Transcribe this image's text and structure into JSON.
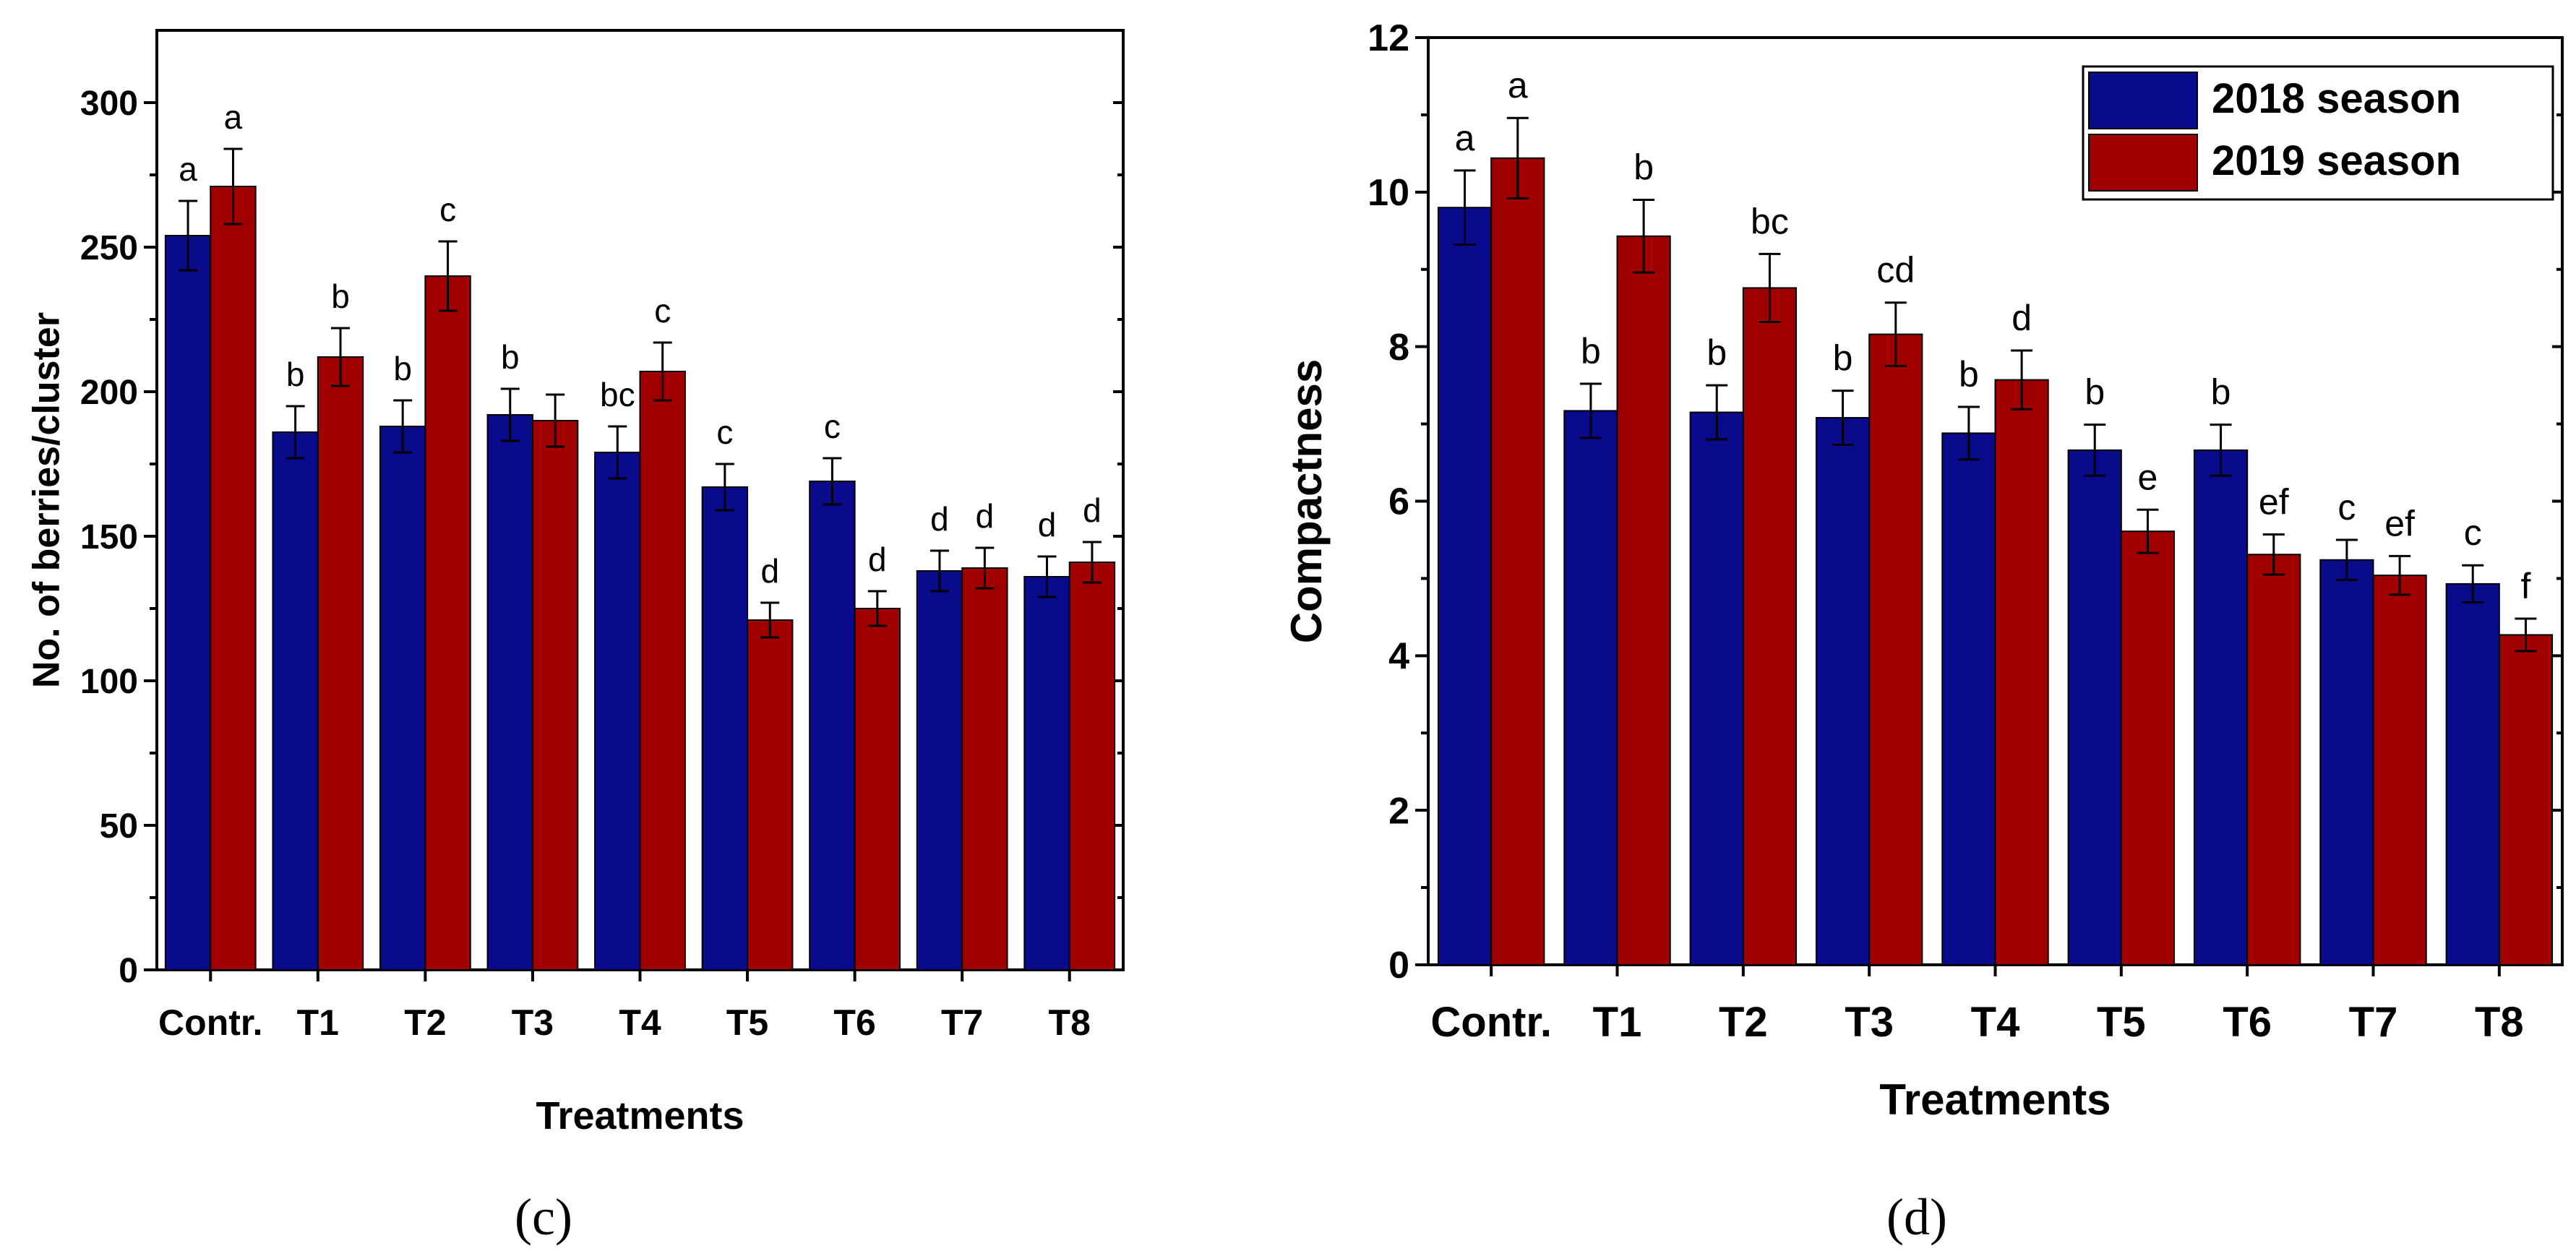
{
  "chart_data": [
    {
      "type": "bar",
      "panel_label": "(c)",
      "title": "",
      "xlabel": "Treatments",
      "ylabel": "No. of berries/cluster",
      "ylim": [
        0,
        325
      ],
      "yticks": [
        0,
        50,
        100,
        150,
        200,
        250,
        300
      ],
      "categories": [
        "Contr.",
        "T1",
        "T2",
        "T3",
        "T4",
        "T5",
        "T6",
        "T7",
        "T8"
      ],
      "series": [
        {
          "name": "2018 season",
          "color": "#0a0a8c",
          "values": [
            254,
            186,
            188,
            192,
            179,
            167,
            169,
            138,
            136
          ],
          "errors": [
            12,
            9,
            9,
            9,
            9,
            8,
            8,
            7,
            7
          ],
          "letters": [
            "a",
            "b",
            "b",
            "b",
            "bc",
            "c",
            "c",
            "d",
            "d"
          ]
        },
        {
          "name": "2019 season",
          "color": "#a00000",
          "values": [
            271,
            212,
            240,
            190,
            207,
            121,
            125,
            139,
            141
          ],
          "errors": [
            13,
            10,
            12,
            9,
            10,
            6,
            6,
            7,
            7
          ],
          "letters": [
            "a",
            "b",
            "c",
            "",
            "c",
            "d",
            "d",
            "d",
            "d"
          ]
        }
      ],
      "legend": null
    },
    {
      "type": "bar",
      "panel_label": "(d)",
      "title": "",
      "xlabel": "Treatments",
      "ylabel": "Compactness",
      "ylim": [
        0,
        12
      ],
      "yticks": [
        0,
        2,
        4,
        6,
        8,
        10,
        12
      ],
      "categories": [
        "Contr.",
        "T1",
        "T2",
        "T3",
        "T4",
        "T5",
        "T6",
        "T7",
        "T8"
      ],
      "series": [
        {
          "name": "2018 season",
          "color": "#0a0a8c",
          "values": [
            9.8,
            7.17,
            7.15,
            7.08,
            6.88,
            6.66,
            6.66,
            5.24,
            4.93
          ],
          "errors": [
            0.48,
            0.35,
            0.35,
            0.35,
            0.34,
            0.33,
            0.33,
            0.26,
            0.24
          ],
          "letters": [
            "a",
            "b",
            "b",
            "b",
            "b",
            "b",
            "b",
            "c",
            "c"
          ]
        },
        {
          "name": "2019 season",
          "color": "#a00000",
          "values": [
            10.44,
            9.43,
            8.76,
            8.16,
            7.57,
            5.61,
            5.31,
            5.04,
            4.27
          ],
          "errors": [
            0.52,
            0.47,
            0.44,
            0.41,
            0.38,
            0.28,
            0.26,
            0.25,
            0.21
          ],
          "letters": [
            "a",
            "b",
            "bc",
            "cd",
            "d",
            "e",
            "ef",
            "ef",
            "f"
          ]
        }
      ],
      "legend": {
        "position": "top-right",
        "entries": [
          "2018 season",
          "2019 season"
        ]
      }
    }
  ]
}
